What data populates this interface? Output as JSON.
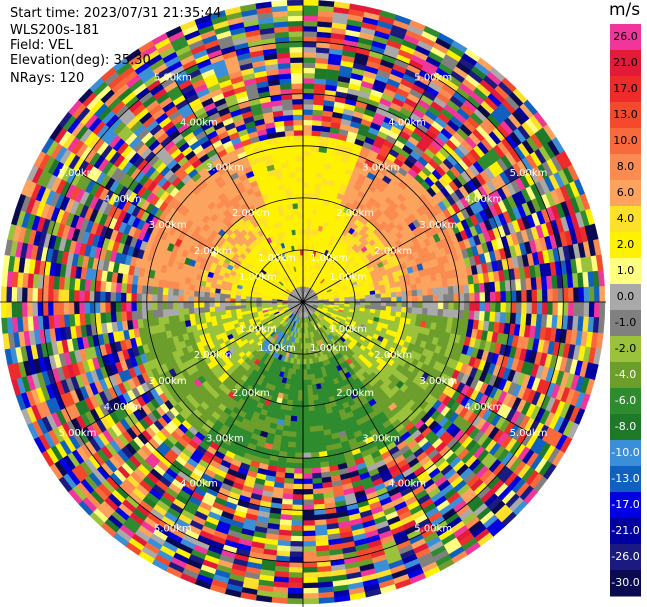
{
  "header": {
    "start_time": "Start time: 2023/07/31 21:35:44",
    "instrument": "WLS200s-181",
    "field": "Field: VEL",
    "elevation": "Elevation(deg): 35.30",
    "nrays": "NRays: 120"
  },
  "colorbar": {
    "unit": "m/s",
    "ticks": [
      "26.0",
      "21.0",
      "17.0",
      "13.0",
      "10.0",
      "8.0",
      "6.0",
      "4.0",
      "2.0",
      "1.0",
      "0.0",
      "-1.0",
      "-2.0",
      "-4.0",
      "-6.0",
      "-8.0",
      "-10.0",
      "-13.0",
      "-17.0",
      "-21.0",
      "-26.0",
      "-30.0"
    ],
    "colors": [
      "#f0369b",
      "#e41b38",
      "#ee2b2b",
      "#f4492a",
      "#f86a3c",
      "#fb8b50",
      "#fca35e",
      "#fde02a",
      "#fff200",
      "#ffff80",
      "#a9a9a9",
      "#808080",
      "#9ac23a",
      "#6c9e2c",
      "#2e8b2e",
      "#1e7a28",
      "#3a8fd8",
      "#1060c0",
      "#0000e0",
      "#0000a0",
      "#1a1a80",
      "#0a0a50"
    ]
  },
  "chart_data": {
    "type": "heatmap",
    "projection": "polar (PPI)",
    "field": "VEL",
    "units": "m/s",
    "n_rays": 120,
    "range_rings_km": [
      1.0,
      2.0,
      3.0,
      4.0,
      5.0
    ],
    "ring_labels": [
      "1.00km",
      "2.00km",
      "3.00km",
      "4.00km",
      "5.00km"
    ],
    "color_range": [
      -30.0,
      26.0
    ],
    "pattern": "positive velocities (yellow/orange) in northern half, negative (green/blue) in southern half within ~3 km; noisy multicolor beyond"
  }
}
